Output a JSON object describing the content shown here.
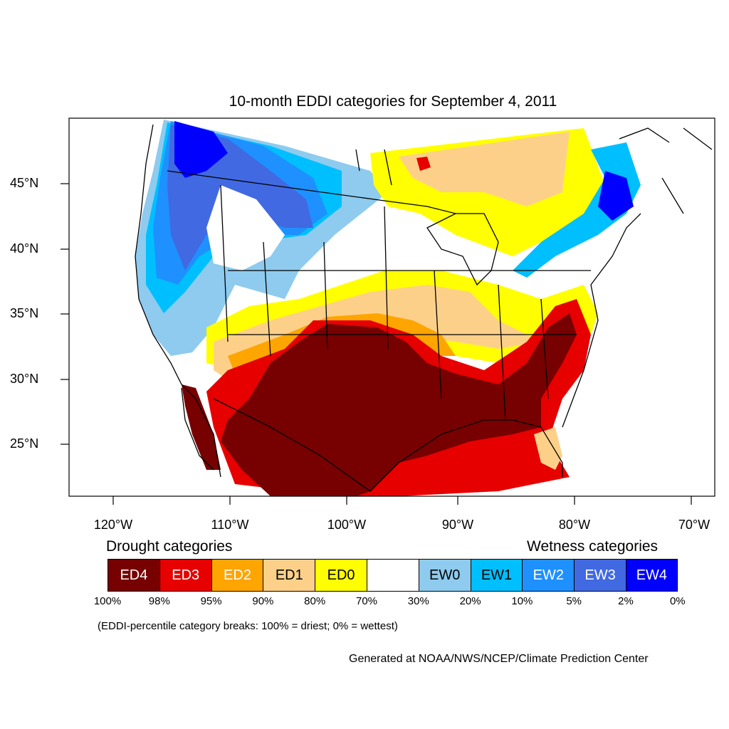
{
  "title": "10-month EDDI categories for September 4, 2011",
  "latitude_labels": [
    "45°N",
    "40°N",
    "35°N",
    "30°N",
    "25°N"
  ],
  "longitude_labels": [
    "120°W",
    "110°W",
    "100°W",
    "90°W",
    "80°W",
    "70°W"
  ],
  "legend": {
    "drought_heading": "Drought categories",
    "wetness_heading": "Wetness categories",
    "categories": [
      {
        "label": "ED4",
        "color": "#770000",
        "text_color": "#ffffff"
      },
      {
        "label": "ED3",
        "color": "#e60000",
        "text_color": "#ffffff"
      },
      {
        "label": "ED2",
        "color": "#ffa500",
        "text_color": "#ffffff"
      },
      {
        "label": "ED1",
        "color": "#fdd08a",
        "text_color": "#000000"
      },
      {
        "label": "ED0",
        "color": "#ffff00",
        "text_color": "#000000"
      },
      {
        "label": "",
        "color": "#ffffff",
        "text_color": "#000000"
      },
      {
        "label": "EW0",
        "color": "#8ecbee",
        "text_color": "#000000"
      },
      {
        "label": "EW1",
        "color": "#00bfff",
        "text_color": "#000000"
      },
      {
        "label": "EW2",
        "color": "#1e90ff",
        "text_color": "#ffffff"
      },
      {
        "label": "EW3",
        "color": "#4169e1",
        "text_color": "#ffffff"
      },
      {
        "label": "EW4",
        "color": "#0000ff",
        "text_color": "#ffffff"
      }
    ],
    "breaks": [
      "100%",
      "98%",
      "95%",
      "90%",
      "80%",
      "70%",
      "30%",
      "20%",
      "10%",
      "5%",
      "2%",
      "0%"
    ]
  },
  "note": "(EDDI-percentile category breaks: 100% = driest; 0% = wettest)",
  "credit": "Generated at NOAA/NWS/NCEP/Climate Prediction Center"
}
